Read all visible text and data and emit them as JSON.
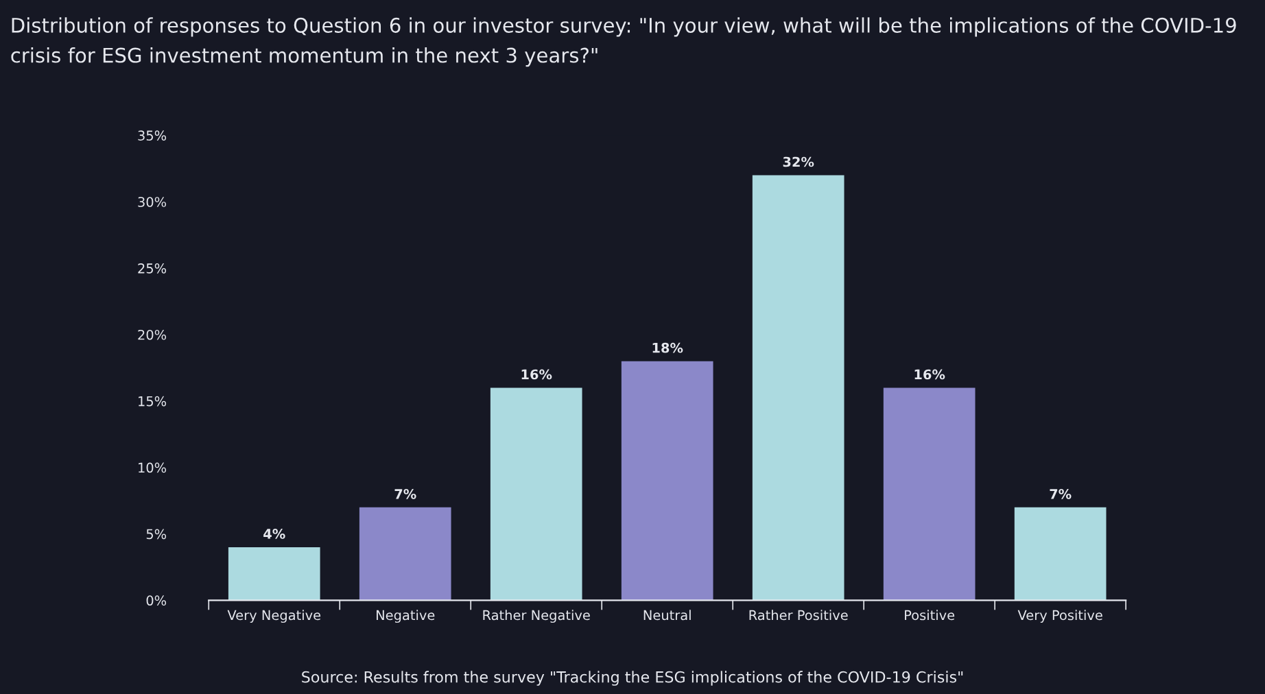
{
  "chart_data": {
    "type": "bar",
    "title": "Distribution of responses to Question 6 in our investor survey: \"In your view, what will be the implications of the COVID-19 crisis for ESG investment momentum in the next 3 years?\"",
    "categories": [
      "Very Negative",
      "Negative",
      "Rather Negative",
      "Neutral",
      "Rather Positive",
      "Positive",
      "Very Positive"
    ],
    "values": [
      4,
      7,
      16,
      18,
      32,
      16,
      7
    ],
    "colors": [
      "#acdae0",
      "#8b88c9",
      "#acdae0",
      "#8b88c9",
      "#acdae0",
      "#8b88c9",
      "#acdae0"
    ],
    "value_labels": [
      "4%",
      "7%",
      "16%",
      "18%",
      "32%",
      "16%",
      "7%"
    ],
    "ylim": [
      0,
      35
    ],
    "yticks": [
      {
        "value": 0,
        "label": "0%"
      },
      {
        "value": 5,
        "label": "5%"
      },
      {
        "value": 10,
        "label": "10%"
      },
      {
        "value": 15,
        "label": "15%"
      },
      {
        "value": 20,
        "label": "20%"
      },
      {
        "value": 25,
        "label": "25%"
      },
      {
        "value": 30,
        "label": "30%"
      },
      {
        "value": 35,
        "label": "35%"
      }
    ],
    "grid": false,
    "legend": false,
    "annotations": [
      "Source: Results from the survey \"Tracking the ESG implications of the COVID-19 Crisis\""
    ]
  }
}
